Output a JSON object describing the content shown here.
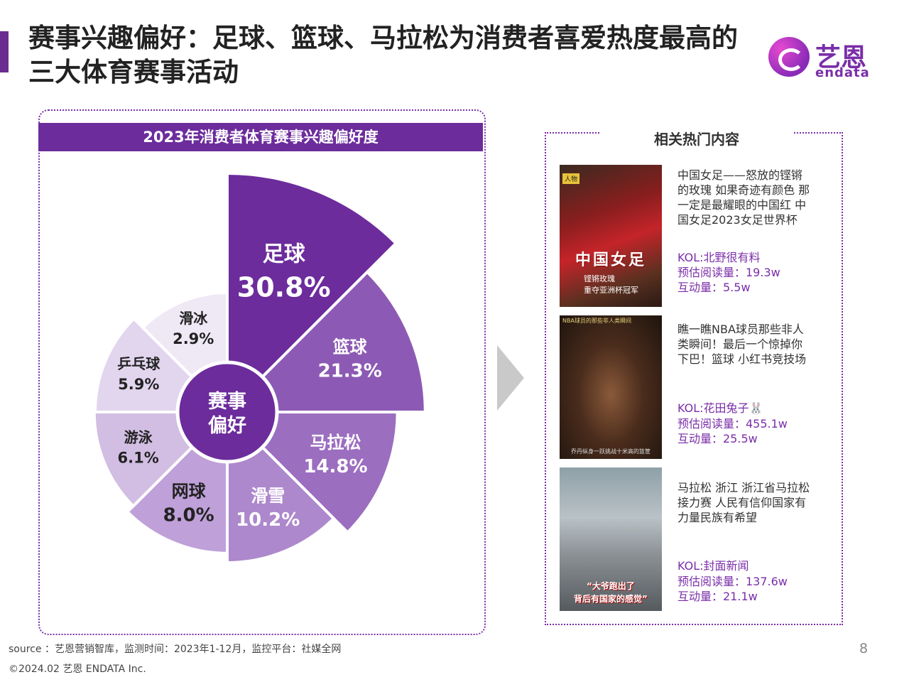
{
  "title": "赛事兴趣偏好：足球、篮球、马拉松为消费者喜爱热度最高的三大体育赛事活动",
  "logo": {
    "cn": "艺恩",
    "en": "endata"
  },
  "chart_data": {
    "type": "pie",
    "title": "2023年消费者体育赛事兴趣偏好度",
    "center_label": [
      "赛事",
      "偏好"
    ],
    "categories": [
      "足球",
      "篮球",
      "马拉松",
      "滑雪",
      "网球",
      "游泳",
      "乒乓球",
      "滑冰"
    ],
    "values": [
      30.8,
      21.3,
      14.8,
      10.2,
      8.0,
      6.1,
      5.9,
      2.9
    ],
    "value_labels": [
      "30.8%",
      "21.3%",
      "14.8%",
      "10.2%",
      "8.0%",
      "6.1%",
      "5.9%",
      "2.9%"
    ],
    "colors": [
      "#6c2c9c",
      "#8c5ab4",
      "#9b6ec0",
      "#ad88cc",
      "#bfa0d8",
      "#d2bde3",
      "#e2d5ee",
      "#efe8f5"
    ],
    "label_colors": [
      "#ffffff",
      "#ffffff",
      "#ffffff",
      "#ffffff",
      "#222222",
      "#222222",
      "#222222",
      "#222222"
    ]
  },
  "hot": {
    "title": "相关热门内容",
    "items": [
      {
        "caption": "中国女足——怒放的铿锵的玫瑰 如果奇迹有颜色 那一定是最耀眼的中国红 中国女足2023女足世界杯",
        "kol": "KOL:北野很有料",
        "reads": "预估阅读量：19.3w",
        "interactions": "互动量：5.5w",
        "thumb_tag": "人物",
        "thumb_big": "中国女足",
        "thumb_small1": "铿锵玫瑰",
        "thumb_small2": "重夺亚洲杯冠军"
      },
      {
        "caption": "瞧一瞧NBA球员那些非人类瞬间！最后一个惊掉你下巴！篮球 小红书竞技场",
        "kol": "KOL:花田兔子🐰",
        "reads": "预估阅读量：455.1w",
        "interactions": "互动量：25.5w",
        "thumb_top": "NBA球员的那些非人类瞬间",
        "thumb_bottom": "乔丹纵身一跃挑战十米高的篮筐"
      },
      {
        "caption": "马拉松 浙江 浙江省马拉松接力赛 人民有信仰国家有力量民族有希望",
        "kol": "KOL:封面新闻",
        "reads": "预估阅读量：137.6w",
        "interactions": "互动量：21.1w",
        "thumb_big1": "“大爷跑出了",
        "thumb_big2": "背后有国家的感觉”"
      }
    ]
  },
  "footer": {
    "source": "source ：艺恩营销智库，监测时间：2023年1-12月，监控平台：社媒全网",
    "copyright": "©2024.02  艺恩 ENDATA Inc.",
    "page": "8"
  }
}
